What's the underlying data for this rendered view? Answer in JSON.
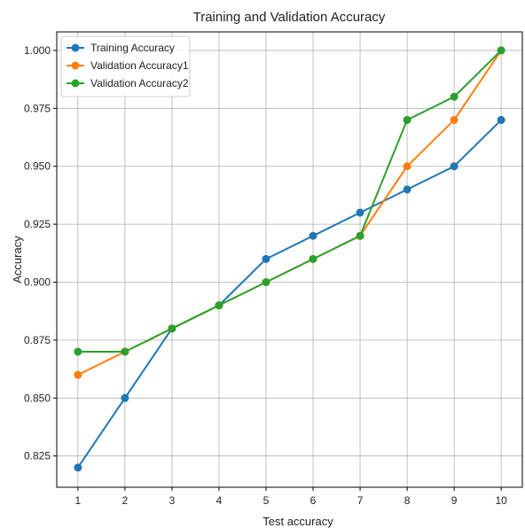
{
  "chart_data": {
    "type": "line",
    "title": "Training and Validation Accuracy",
    "xlabel": "Test accuracy",
    "ylabel": "Accuracy",
    "x": [
      1,
      2,
      3,
      4,
      5,
      6,
      7,
      8,
      9,
      10
    ],
    "xlim": [
      0.55,
      10.45
    ],
    "ylim": [
      0.8115,
      1.008
    ],
    "xticks": [
      1,
      2,
      3,
      4,
      5,
      6,
      7,
      8,
      9,
      10
    ],
    "yticks": [
      0.825,
      0.85,
      0.875,
      0.9,
      0.925,
      0.95,
      0.975,
      1.0
    ],
    "ytick_labels": [
      "0.825",
      "0.850",
      "0.875",
      "0.900",
      "0.925",
      "0.950",
      "0.975",
      "1.000"
    ],
    "grid": true,
    "legend_position": "top-left",
    "series": [
      {
        "name": "Training Accuracy",
        "color": "#1f77b4",
        "values": [
          0.82,
          0.85,
          0.88,
          0.89,
          0.91,
          0.92,
          0.93,
          0.94,
          0.95,
          0.97
        ]
      },
      {
        "name": "Validation Accuracy1",
        "color": "#ff7f0e",
        "values": [
          0.86,
          0.87,
          0.88,
          0.89,
          0.9,
          0.91,
          0.92,
          0.95,
          0.97,
          1.0
        ]
      },
      {
        "name": "Validation Accuracy2",
        "color": "#2ca02c",
        "values": [
          0.87,
          0.87,
          0.88,
          0.89,
          0.9,
          0.91,
          0.92,
          0.97,
          0.98,
          1.0
        ]
      }
    ]
  }
}
